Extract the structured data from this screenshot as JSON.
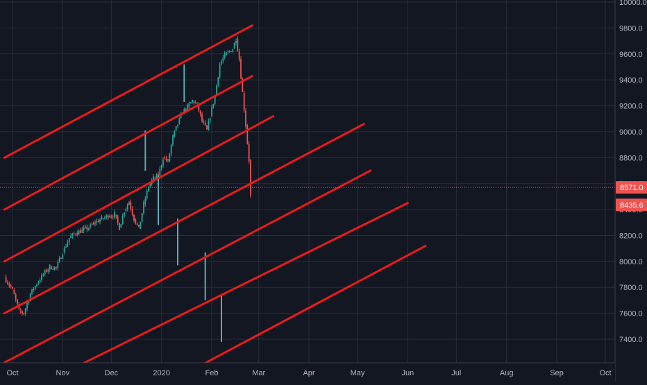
{
  "colors": {
    "background": "#131722",
    "grid": "#2a2e39",
    "axis_text": "#b2b5be",
    "axis_line": "#3a3e4a",
    "channel": "#e81c1c",
    "candle_up": "#26a69a",
    "candle_down": "#ef5350",
    "wick_spike": "#5eaab0",
    "label_bg": "#ef5350",
    "label_text": "#ffffff"
  },
  "chart_data": {
    "type": "candlestick",
    "x_axis": {
      "type": "time",
      "tick_labels": [
        "Oct",
        "Nov",
        "Dec",
        "2020",
        "Feb",
        "Mar",
        "Apr",
        "May",
        "Jun",
        "Jul",
        "Aug",
        "Sep",
        "Oct"
      ],
      "tick_positions": [
        "2019-10-01",
        "2019-11-01",
        "2019-12-01",
        "2020-01-01",
        "2020-02-01",
        "2020-03-01",
        "2020-04-01",
        "2020-05-01",
        "2020-06-01",
        "2020-07-01",
        "2020-08-01",
        "2020-09-01",
        "2020-10-01"
      ]
    },
    "y_axis": {
      "range": [
        7210,
        10020
      ],
      "tick_labels": [
        "10000.0",
        "9800.0",
        "9600.0",
        "9400.0",
        "9200.0",
        "9000.0",
        "8800.0",
        "8600.0",
        "8400.0",
        "8200.0",
        "8000.0",
        "7800.0",
        "7600.0",
        "7400.0"
      ],
      "tick_values": [
        10000,
        9800,
        9600,
        9400,
        9200,
        9000,
        8800,
        8600,
        8400,
        8200,
        8000,
        7800,
        7600,
        7400
      ]
    },
    "price_path": [
      [
        "2019-09-26",
        7880
      ],
      [
        "2019-10-01",
        7780
      ],
      [
        "2019-10-05",
        7620
      ],
      [
        "2019-10-08",
        7600
      ],
      [
        "2019-10-12",
        7750
      ],
      [
        "2019-10-16",
        7830
      ],
      [
        "2019-10-20",
        7900
      ],
      [
        "2019-10-24",
        7960
      ],
      [
        "2019-10-28",
        7950
      ],
      [
        "2019-11-01",
        8070
      ],
      [
        "2019-11-05",
        8180
      ],
      [
        "2019-11-09",
        8220
      ],
      [
        "2019-11-13",
        8240
      ],
      [
        "2019-11-17",
        8260
      ],
      [
        "2019-11-21",
        8300
      ],
      [
        "2019-11-25",
        8330
      ],
      [
        "2019-11-29",
        8350
      ],
      [
        "2019-12-03",
        8360
      ],
      [
        "2019-12-06",
        8260
      ],
      [
        "2019-12-09",
        8390
      ],
      [
        "2019-12-12",
        8460
      ],
      [
        "2019-12-15",
        8330
      ],
      [
        "2019-12-18",
        8250
      ],
      [
        "2019-12-21",
        8440
      ],
      [
        "2019-12-24",
        8580
      ],
      [
        "2019-12-27",
        8640
      ],
      [
        "2019-12-30",
        8660
      ],
      [
        "2020-01-02",
        8800
      ],
      [
        "2020-01-05",
        8770
      ],
      [
        "2020-01-08",
        8960
      ],
      [
        "2020-01-11",
        9060
      ],
      [
        "2020-01-14",
        9150
      ],
      [
        "2020-01-17",
        9190
      ],
      [
        "2020-01-20",
        9240
      ],
      [
        "2020-01-23",
        9210
      ],
      [
        "2020-01-26",
        9080
      ],
      [
        "2020-01-29",
        9010
      ],
      [
        "2020-01-31",
        9120
      ],
      [
        "2020-02-03",
        9280
      ],
      [
        "2020-02-06",
        9520
      ],
      [
        "2020-02-09",
        9590
      ],
      [
        "2020-02-12",
        9620
      ],
      [
        "2020-02-14",
        9640
      ],
      [
        "2020-02-16",
        9720
      ],
      [
        "2020-02-18",
        9560
      ],
      [
        "2020-02-20",
        9300
      ],
      [
        "2020-02-22",
        9050
      ],
      [
        "2020-02-24",
        8780
      ],
      [
        "2020-02-25",
        8500
      ]
    ],
    "spikes": [
      {
        "date": "2020-01-15",
        "high": 9520,
        "low": 9230,
        "color": "up"
      },
      {
        "date": "2019-12-22",
        "high": 9010,
        "low": 8700,
        "color": "up"
      },
      {
        "date": "2019-12-30",
        "high": 8660,
        "low": 8280,
        "color": "up"
      },
      {
        "date": "2020-01-11",
        "high": 8330,
        "low": 7970,
        "color": "up"
      },
      {
        "date": "2020-01-28",
        "high": 8070,
        "low": 7700,
        "color": "up"
      },
      {
        "date": "2020-02-07",
        "high": 7750,
        "low": 7380,
        "color": "up"
      }
    ],
    "channel_lines": [
      {
        "start": [
          "2019-09-26",
          8800
        ],
        "end": [
          "2020-02-26",
          9820
        ]
      },
      {
        "start": [
          "2019-09-26",
          8400
        ],
        "end": [
          "2020-02-26",
          9430
        ]
      },
      {
        "start": [
          "2019-09-26",
          8000
        ],
        "end": [
          "2020-03-10",
          9120
        ]
      },
      {
        "start": [
          "2019-09-26",
          7600
        ],
        "end": [
          "2020-05-05",
          9060
        ]
      },
      {
        "start": [
          "2019-09-26",
          7220
        ],
        "end": [
          "2020-05-09",
          8700
        ]
      },
      {
        "start": [
          "2019-11-13",
          7210
        ],
        "end": [
          "2020-06-01",
          8450
        ]
      },
      {
        "start": [
          "2020-01-27",
          7210
        ],
        "end": [
          "2020-06-12",
          8120
        ]
      }
    ],
    "horizontal_line": {
      "value": 8571
    },
    "price_labels": [
      {
        "text": "8571.0",
        "value": 8571
      },
      {
        "text": "8435.6",
        "value": 8435.6
      }
    ]
  }
}
